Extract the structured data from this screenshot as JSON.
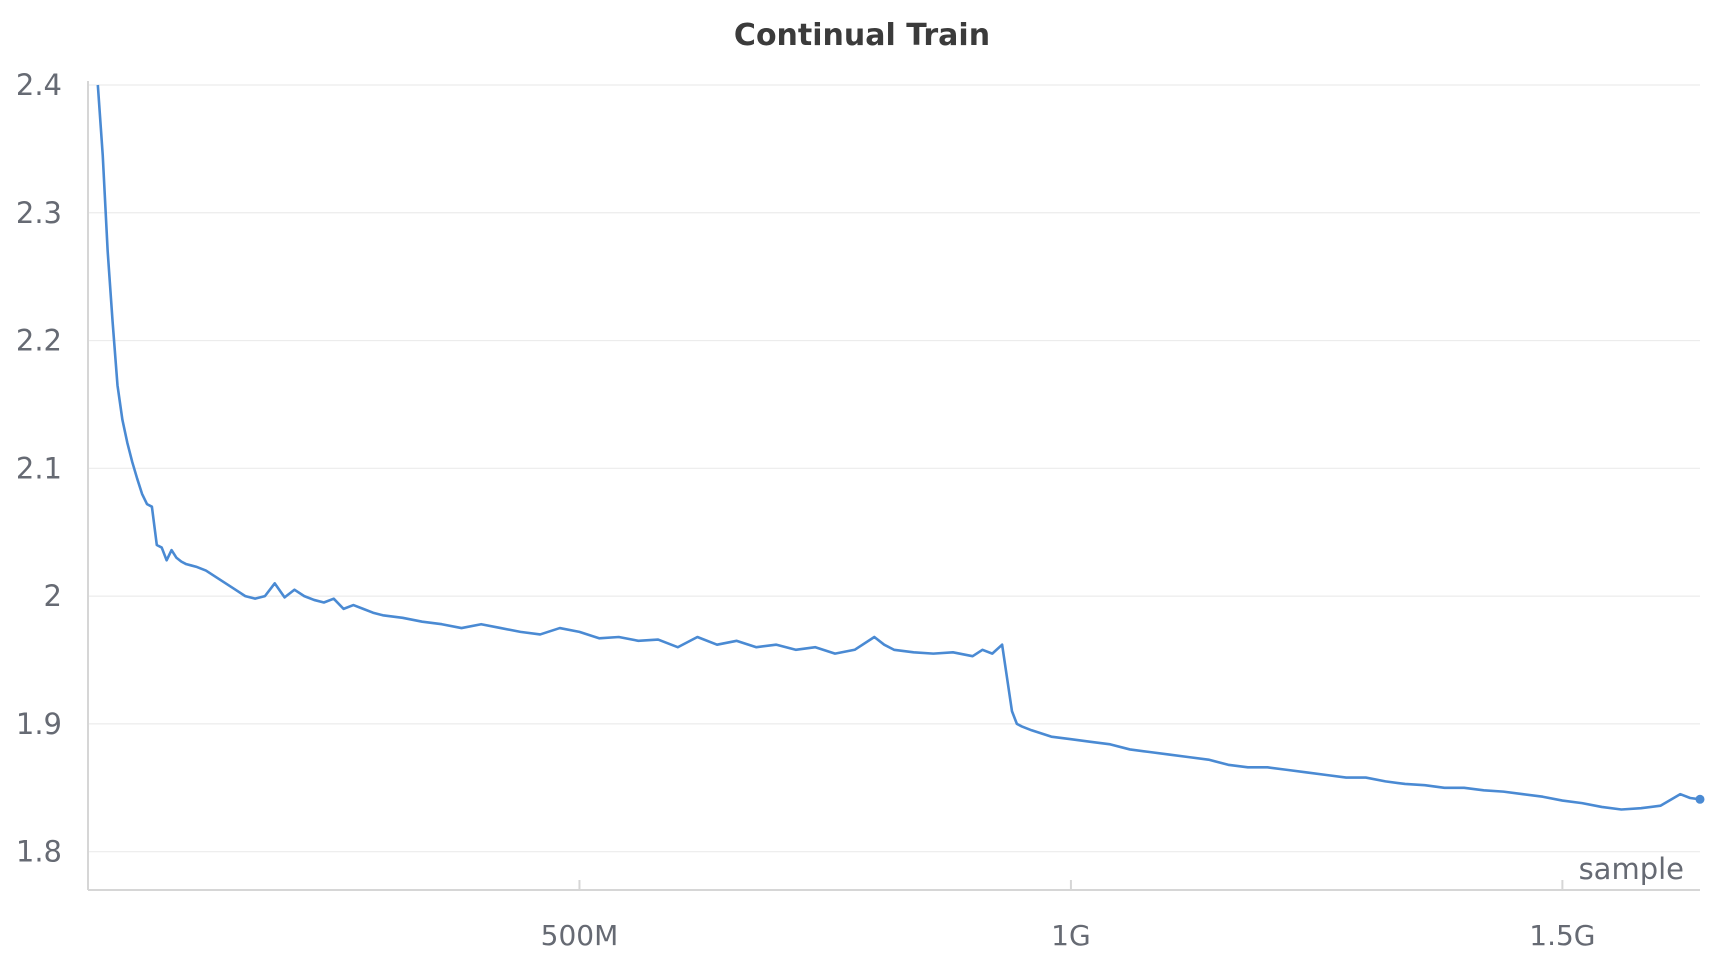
{
  "chart_data": {
    "type": "line",
    "title": "Continual Train",
    "xlabel": "sample",
    "ylabel": "",
    "xlim": [
      0,
      1640000000
    ],
    "ylim": [
      1.77,
      2.4
    ],
    "x_ticks": [
      {
        "value": 500000000,
        "label": "500M"
      },
      {
        "value": 1000000000,
        "label": "1G"
      },
      {
        "value": 1500000000,
        "label": "1.5G"
      }
    ],
    "y_ticks": [
      {
        "value": 1.8,
        "label": "1.8"
      },
      {
        "value": 1.9,
        "label": "1.9"
      },
      {
        "value": 2.0,
        "label": "2"
      },
      {
        "value": 2.1,
        "label": "2.1"
      },
      {
        "value": 2.2,
        "label": "2.2"
      },
      {
        "value": 2.3,
        "label": "2.3"
      },
      {
        "value": 2.4,
        "label": "2.4"
      }
    ],
    "grid": true,
    "legend": "none",
    "series": [
      {
        "color": "#4a8ad3",
        "x": [
          10000000,
          15000000,
          20000000,
          25000000,
          30000000,
          35000000,
          40000000,
          45000000,
          50000000,
          55000000,
          60000000,
          65000000,
          70000000,
          75000000,
          80000000,
          85000000,
          90000000,
          95000000,
          100000000,
          105000000,
          110000000,
          120000000,
          130000000,
          140000000,
          150000000,
          160000000,
          170000000,
          180000000,
          190000000,
          200000000,
          210000000,
          220000000,
          230000000,
          240000000,
          250000000,
          260000000,
          270000000,
          280000000,
          290000000,
          300000000,
          320000000,
          340000000,
          360000000,
          380000000,
          400000000,
          420000000,
          440000000,
          460000000,
          480000000,
          500000000,
          520000000,
          540000000,
          560000000,
          580000000,
          600000000,
          620000000,
          640000000,
          660000000,
          680000000,
          700000000,
          720000000,
          740000000,
          760000000,
          780000000,
          800000000,
          810000000,
          820000000,
          840000000,
          860000000,
          880000000,
          900000000,
          910000000,
          920000000,
          930000000,
          940000000,
          945000000,
          950000000,
          960000000,
          980000000,
          1000000000,
          1020000000,
          1040000000,
          1060000000,
          1080000000,
          1100000000,
          1120000000,
          1140000000,
          1160000000,
          1180000000,
          1200000000,
          1220000000,
          1240000000,
          1260000000,
          1280000000,
          1300000000,
          1320000000,
          1340000000,
          1360000000,
          1380000000,
          1400000000,
          1420000000,
          1440000000,
          1460000000,
          1480000000,
          1500000000,
          1520000000,
          1540000000,
          1560000000,
          1580000000,
          1600000000,
          1620000000,
          1630000000,
          1640000000
        ],
        "y": [
          2.4,
          2.345,
          2.27,
          2.215,
          2.165,
          2.138,
          2.12,
          2.105,
          2.092,
          2.08,
          2.072,
          2.07,
          2.04,
          2.038,
          2.028,
          2.036,
          2.03,
          2.027,
          2.025,
          2.024,
          2.023,
          2.02,
          2.015,
          2.01,
          2.005,
          2.0,
          1.998,
          2.0,
          2.01,
          1.999,
          2.005,
          2.0,
          1.997,
          1.995,
          1.998,
          1.99,
          1.993,
          1.99,
          1.987,
          1.985,
          1.983,
          1.98,
          1.978,
          1.975,
          1.978,
          1.975,
          1.972,
          1.97,
          1.975,
          1.972,
          1.967,
          1.968,
          1.965,
          1.966,
          1.96,
          1.968,
          1.962,
          1.965,
          1.96,
          1.962,
          1.958,
          1.96,
          1.955,
          1.958,
          1.968,
          1.962,
          1.958,
          1.956,
          1.955,
          1.956,
          1.953,
          1.958,
          1.955,
          1.962,
          1.91,
          1.9,
          1.898,
          1.895,
          1.89,
          1.888,
          1.886,
          1.884,
          1.88,
          1.878,
          1.876,
          1.874,
          1.872,
          1.868,
          1.866,
          1.866,
          1.864,
          1.862,
          1.86,
          1.858,
          1.858,
          1.855,
          1.853,
          1.852,
          1.85,
          1.85,
          1.848,
          1.847,
          1.845,
          1.843,
          1.84,
          1.838,
          1.835,
          1.833,
          1.834,
          1.836,
          1.845,
          1.842,
          1.841
        ]
      }
    ]
  }
}
